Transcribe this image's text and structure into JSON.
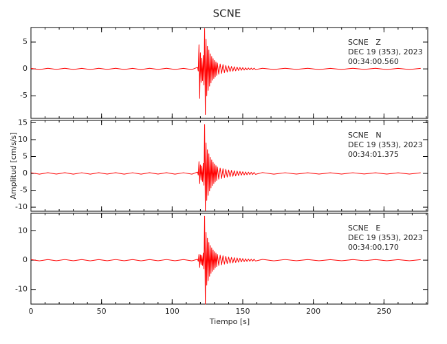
{
  "chart_data": [
    {
      "type": "line",
      "title": "SCNE",
      "annotation": [
        "SCNE   Z",
        "DEC 19 (353), 2023",
        "00:34:00.560"
      ],
      "xlim": [
        0,
        281
      ],
      "ylim": [
        -9.2,
        7.7
      ],
      "yticks": [
        -5,
        0,
        5
      ],
      "x": [
        0,
        6,
        12,
        18,
        24,
        30,
        36,
        42,
        48,
        54,
        60,
        66,
        72,
        78,
        84,
        90,
        96,
        102,
        108,
        114,
        118,
        118.5,
        119,
        119.5,
        120,
        120.5,
        121,
        121.5,
        122,
        122.5,
        123,
        123.5,
        124,
        124.5,
        125,
        125.5,
        126,
        126.5,
        127,
        127.5,
        128,
        128.5,
        129,
        129.5,
        130,
        130.5,
        131,
        131.5,
        132,
        133,
        134,
        135,
        136,
        137,
        138,
        139,
        140,
        141,
        142,
        143,
        144,
        145,
        146,
        147,
        148,
        149,
        150,
        151,
        152,
        153,
        154,
        155,
        156,
        157,
        158,
        159,
        164,
        172,
        180,
        188,
        196,
        204,
        212,
        220,
        228,
        236,
        244,
        252,
        260,
        268,
        276
      ],
      "series": [
        {
          "color": "#ff0000",
          "values": [
            0.1,
            -0.12,
            0.11,
            -0.1,
            0.12,
            -0.11,
            0.1,
            -0.12,
            0.11,
            -0.1,
            0.12,
            -0.11,
            0.1,
            -0.12,
            0.11,
            -0.1,
            0.12,
            -0.11,
            0.1,
            -0.12,
            0.3,
            -0.4,
            4.5,
            -5.5,
            3,
            -2.5,
            2,
            -2.2,
            2.5,
            -3,
            7.5,
            -8.5,
            5.5,
            -5,
            4.2,
            -4,
            3.5,
            -3.2,
            2.8,
            -2.6,
            2.3,
            -2.1,
            1.9,
            -1.8,
            1.6,
            -1.5,
            1.3,
            -1.2,
            1.1,
            -1,
            0.9,
            -0.85,
            0.8,
            -0.7,
            0.65,
            -0.6,
            0.55,
            -0.5,
            0.45,
            -0.42,
            0.4,
            -0.36,
            0.33,
            -0.3,
            0.28,
            -0.26,
            0.24,
            -0.22,
            0.2,
            -0.19,
            0.18,
            -0.17,
            0.16,
            -0.15,
            0.14,
            -0.13,
            0.12,
            -0.11,
            0.12,
            -0.1,
            0.11,
            -0.12,
            0.1,
            -0.11,
            0.12,
            -0.1,
            0.11,
            -0.12,
            0.1,
            -0.11,
            0.1
          ]
        }
      ]
    },
    {
      "type": "line",
      "ylabel": "Amplitud [cm/s/s]",
      "annotation": [
        "SCNE   N",
        "DEC 19 (353), 2023",
        "00:34:01.375"
      ],
      "xlim": [
        0,
        281
      ],
      "ylim": [
        -11.2,
        15.7
      ],
      "yticks": [
        -10,
        -5,
        0,
        5,
        10,
        15
      ],
      "x": [
        0,
        6,
        12,
        18,
        24,
        30,
        36,
        42,
        48,
        54,
        60,
        66,
        72,
        78,
        84,
        90,
        96,
        102,
        108,
        114,
        118,
        118.5,
        119,
        119.5,
        120,
        120.5,
        121,
        121.5,
        122,
        122.5,
        123,
        123.5,
        124,
        124.5,
        125,
        125.5,
        126,
        126.5,
        127,
        127.5,
        128,
        128.5,
        129,
        129.5,
        130,
        130.5,
        131,
        131.5,
        132,
        133,
        134,
        135,
        136,
        137,
        138,
        139,
        140,
        141,
        142,
        143,
        144,
        145,
        146,
        147,
        148,
        149,
        150,
        151,
        152,
        153,
        154,
        155,
        156,
        157,
        158,
        159,
        164,
        172,
        180,
        188,
        196,
        204,
        212,
        220,
        228,
        236,
        244,
        252,
        260,
        268,
        276
      ],
      "series": [
        {
          "color": "#ff0000",
          "values": [
            0.2,
            -0.22,
            0.21,
            -0.2,
            0.22,
            -0.21,
            0.2,
            -0.22,
            0.21,
            -0.2,
            0.22,
            -0.21,
            0.2,
            -0.22,
            0.21,
            -0.2,
            0.22,
            -0.21,
            0.2,
            -0.22,
            0.4,
            -0.5,
            3.5,
            -3,
            2.5,
            -2,
            2.2,
            -2.4,
            3,
            -3.5,
            14.5,
            -11,
            9,
            -8,
            7,
            -6.5,
            5.8,
            -5.2,
            4.8,
            -4.3,
            4,
            -3.6,
            3.3,
            -3,
            2.8,
            -2.5,
            2.3,
            -2.1,
            1.9,
            -1.7,
            1.6,
            -1.5,
            1.4,
            -1.3,
            1.2,
            -1.1,
            1,
            -0.95,
            0.9,
            -0.85,
            0.8,
            -0.75,
            0.7,
            -0.65,
            0.6,
            -0.55,
            0.5,
            -0.47,
            0.44,
            -0.41,
            0.38,
            -0.35,
            0.33,
            -0.31,
            0.29,
            -0.27,
            0.25,
            -0.22,
            0.2,
            -0.2,
            0.18,
            -0.2,
            0.18,
            -0.19,
            0.2,
            -0.18,
            0.19,
            -0.2,
            0.18,
            -0.19,
            0.18
          ]
        }
      ]
    },
    {
      "type": "line",
      "xlabel": "Tiempo [s]",
      "annotation": [
        "SCNE   E",
        "DEC 19 (353), 2023",
        "00:34:00.170"
      ],
      "xlim": [
        0,
        281
      ],
      "ylim": [
        -15,
        16
      ],
      "yticks": [
        -10,
        0,
        10
      ],
      "xticks": [
        0,
        50,
        100,
        150,
        200,
        250
      ],
      "x": [
        0,
        6,
        12,
        18,
        24,
        30,
        36,
        42,
        48,
        54,
        60,
        66,
        72,
        78,
        84,
        90,
        96,
        102,
        108,
        114,
        118,
        118.5,
        119,
        119.5,
        120,
        120.5,
        121,
        121.5,
        122,
        122.5,
        123,
        123.5,
        124,
        124.5,
        125,
        125.5,
        126,
        126.5,
        127,
        127.5,
        128,
        128.5,
        129,
        129.5,
        130,
        130.5,
        131,
        131.5,
        132,
        133,
        134,
        135,
        136,
        137,
        138,
        139,
        140,
        141,
        142,
        143,
        144,
        145,
        146,
        147,
        148,
        149,
        150,
        151,
        152,
        153,
        154,
        155,
        156,
        157,
        158,
        159,
        164,
        172,
        180,
        188,
        196,
        204,
        212,
        220,
        228,
        236,
        244,
        252,
        260,
        268,
        276
      ],
      "series": [
        {
          "color": "#ff0000",
          "values": [
            0.2,
            -0.22,
            0.21,
            -0.2,
            0.22,
            -0.21,
            0.2,
            -0.22,
            0.21,
            -0.2,
            0.22,
            -0.21,
            0.2,
            -0.22,
            0.21,
            -0.2,
            0.22,
            -0.21,
            0.2,
            -0.22,
            0.3,
            -0.4,
            2,
            -2.5,
            1.8,
            -1.5,
            1.6,
            -1.8,
            2.4,
            -3,
            15,
            -15,
            9.5,
            -8.5,
            7.5,
            -7,
            6,
            -5.5,
            5,
            -4.5,
            4.2,
            -3.8,
            3.5,
            -3.2,
            2.9,
            -2.6,
            2.4,
            -2.2,
            2,
            -1.8,
            1.7,
            -1.6,
            1.5,
            -1.4,
            1.3,
            -1.2,
            1.1,
            -1,
            0.95,
            -0.9,
            0.85,
            -0.8,
            0.75,
            -0.7,
            0.65,
            -0.6,
            0.55,
            -0.5,
            0.47,
            -0.44,
            0.41,
            -0.38,
            0.35,
            -0.33,
            0.31,
            -0.29,
            0.27,
            -0.24,
            0.22,
            -0.2,
            0.2,
            -0.21,
            0.19,
            -0.2,
            0.2,
            -0.19,
            0.2,
            -0.21,
            0.19,
            -0.2,
            0.19
          ]
        }
      ]
    }
  ]
}
